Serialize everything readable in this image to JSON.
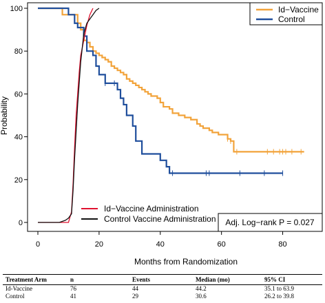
{
  "chart_data": {
    "type": "line",
    "title": "",
    "xlabel": "Months from Randomization",
    "ylabel": "Probability",
    "xlim": [
      0,
      90
    ],
    "ylim": [
      0,
      100
    ],
    "x_ticks": [
      "0",
      "20",
      "40",
      "60",
      "80"
    ],
    "y_ticks": [
      "0",
      "20",
      "40",
      "60",
      "80",
      "100"
    ],
    "grid": false,
    "series": [
      {
        "name": "Id−Vaccine",
        "color": "#f2a33a",
        "kind": "step",
        "x": [
          0,
          8,
          13,
          14,
          15,
          16,
          17,
          18,
          19,
          20,
          21,
          22,
          23,
          24,
          25,
          26,
          27,
          28,
          29,
          30,
          31,
          32,
          33,
          34,
          35,
          36,
          37,
          39,
          40,
          41,
          43,
          44,
          46,
          48,
          50,
          52,
          53,
          54,
          56,
          57,
          59,
          60,
          61,
          62,
          63,
          64,
          87
        ],
        "y": [
          100,
          97,
          93,
          90,
          85,
          84,
          82,
          80,
          79,
          78,
          77,
          76,
          75,
          73,
          72,
          71,
          70,
          69,
          67,
          66,
          65,
          64,
          63,
          62,
          61,
          60,
          59,
          58,
          56,
          54,
          53,
          51,
          50,
          49,
          48,
          46,
          45,
          44,
          43,
          42,
          41,
          41,
          41,
          39,
          38,
          33,
          33
        ],
        "censor_x": [
          62,
          63,
          65,
          75,
          77,
          79,
          80,
          81,
          83,
          86
        ]
      },
      {
        "name": "Control",
        "color": "#1f4e9c",
        "kind": "step",
        "x": [
          0,
          10,
          12,
          13,
          15,
          16,
          18,
          19,
          20,
          22,
          26,
          27,
          28,
          29,
          31,
          32,
          34,
          35,
          37,
          40,
          42,
          43,
          80
        ],
        "y": [
          100,
          97,
          93,
          91,
          87,
          80,
          78,
          73,
          69,
          65,
          62,
          58,
          55,
          50,
          45,
          38,
          32,
          32,
          32,
          29,
          26,
          23,
          23
        ],
        "censor_x": [
          22,
          25,
          44,
          55,
          56,
          66,
          74,
          80
        ]
      },
      {
        "name": "Id−Vaccine Administration",
        "color": "#e0112f",
        "kind": "cumulative",
        "x": [
          0,
          10,
          11,
          11.5,
          12,
          12.5,
          13,
          13.5,
          14,
          15,
          16,
          17,
          18
        ],
        "y": [
          0,
          0,
          5,
          18,
          35,
          50,
          60,
          70,
          78,
          85,
          92,
          97,
          100
        ]
      },
      {
        "name": "Control Vaccine Administration",
        "color": "#111111",
        "kind": "cumulative",
        "x": [
          0,
          7,
          9,
          10,
          11,
          11.5,
          12,
          13,
          14,
          15,
          16,
          17,
          18,
          19,
          20
        ],
        "y": [
          0,
          0,
          1,
          2,
          4,
          15,
          30,
          55,
          75,
          88,
          93,
          95,
          97,
          99,
          100
        ]
      }
    ],
    "legend_top": {
      "position": "top-right",
      "entries": [
        "Id−Vaccine",
        "Control"
      ]
    },
    "legend_bottom": {
      "position": "bottom-left",
      "entries": [
        "Id−Vaccine Administration",
        "Control Vaccine Administration"
      ]
    },
    "annotation": "Adj. Log−rank P = 0.027"
  },
  "summary_table": {
    "headers": [
      "Treatment Arm",
      "n",
      "Events",
      "Median (mo)",
      "95% CI"
    ],
    "rows": [
      [
        "Id-Vaccine",
        "76",
        "44",
        "44.2",
        "35.1 to 63.9"
      ],
      [
        "Control",
        "41",
        "29",
        "30.6",
        "26.2 to 39.8"
      ]
    ]
  }
}
